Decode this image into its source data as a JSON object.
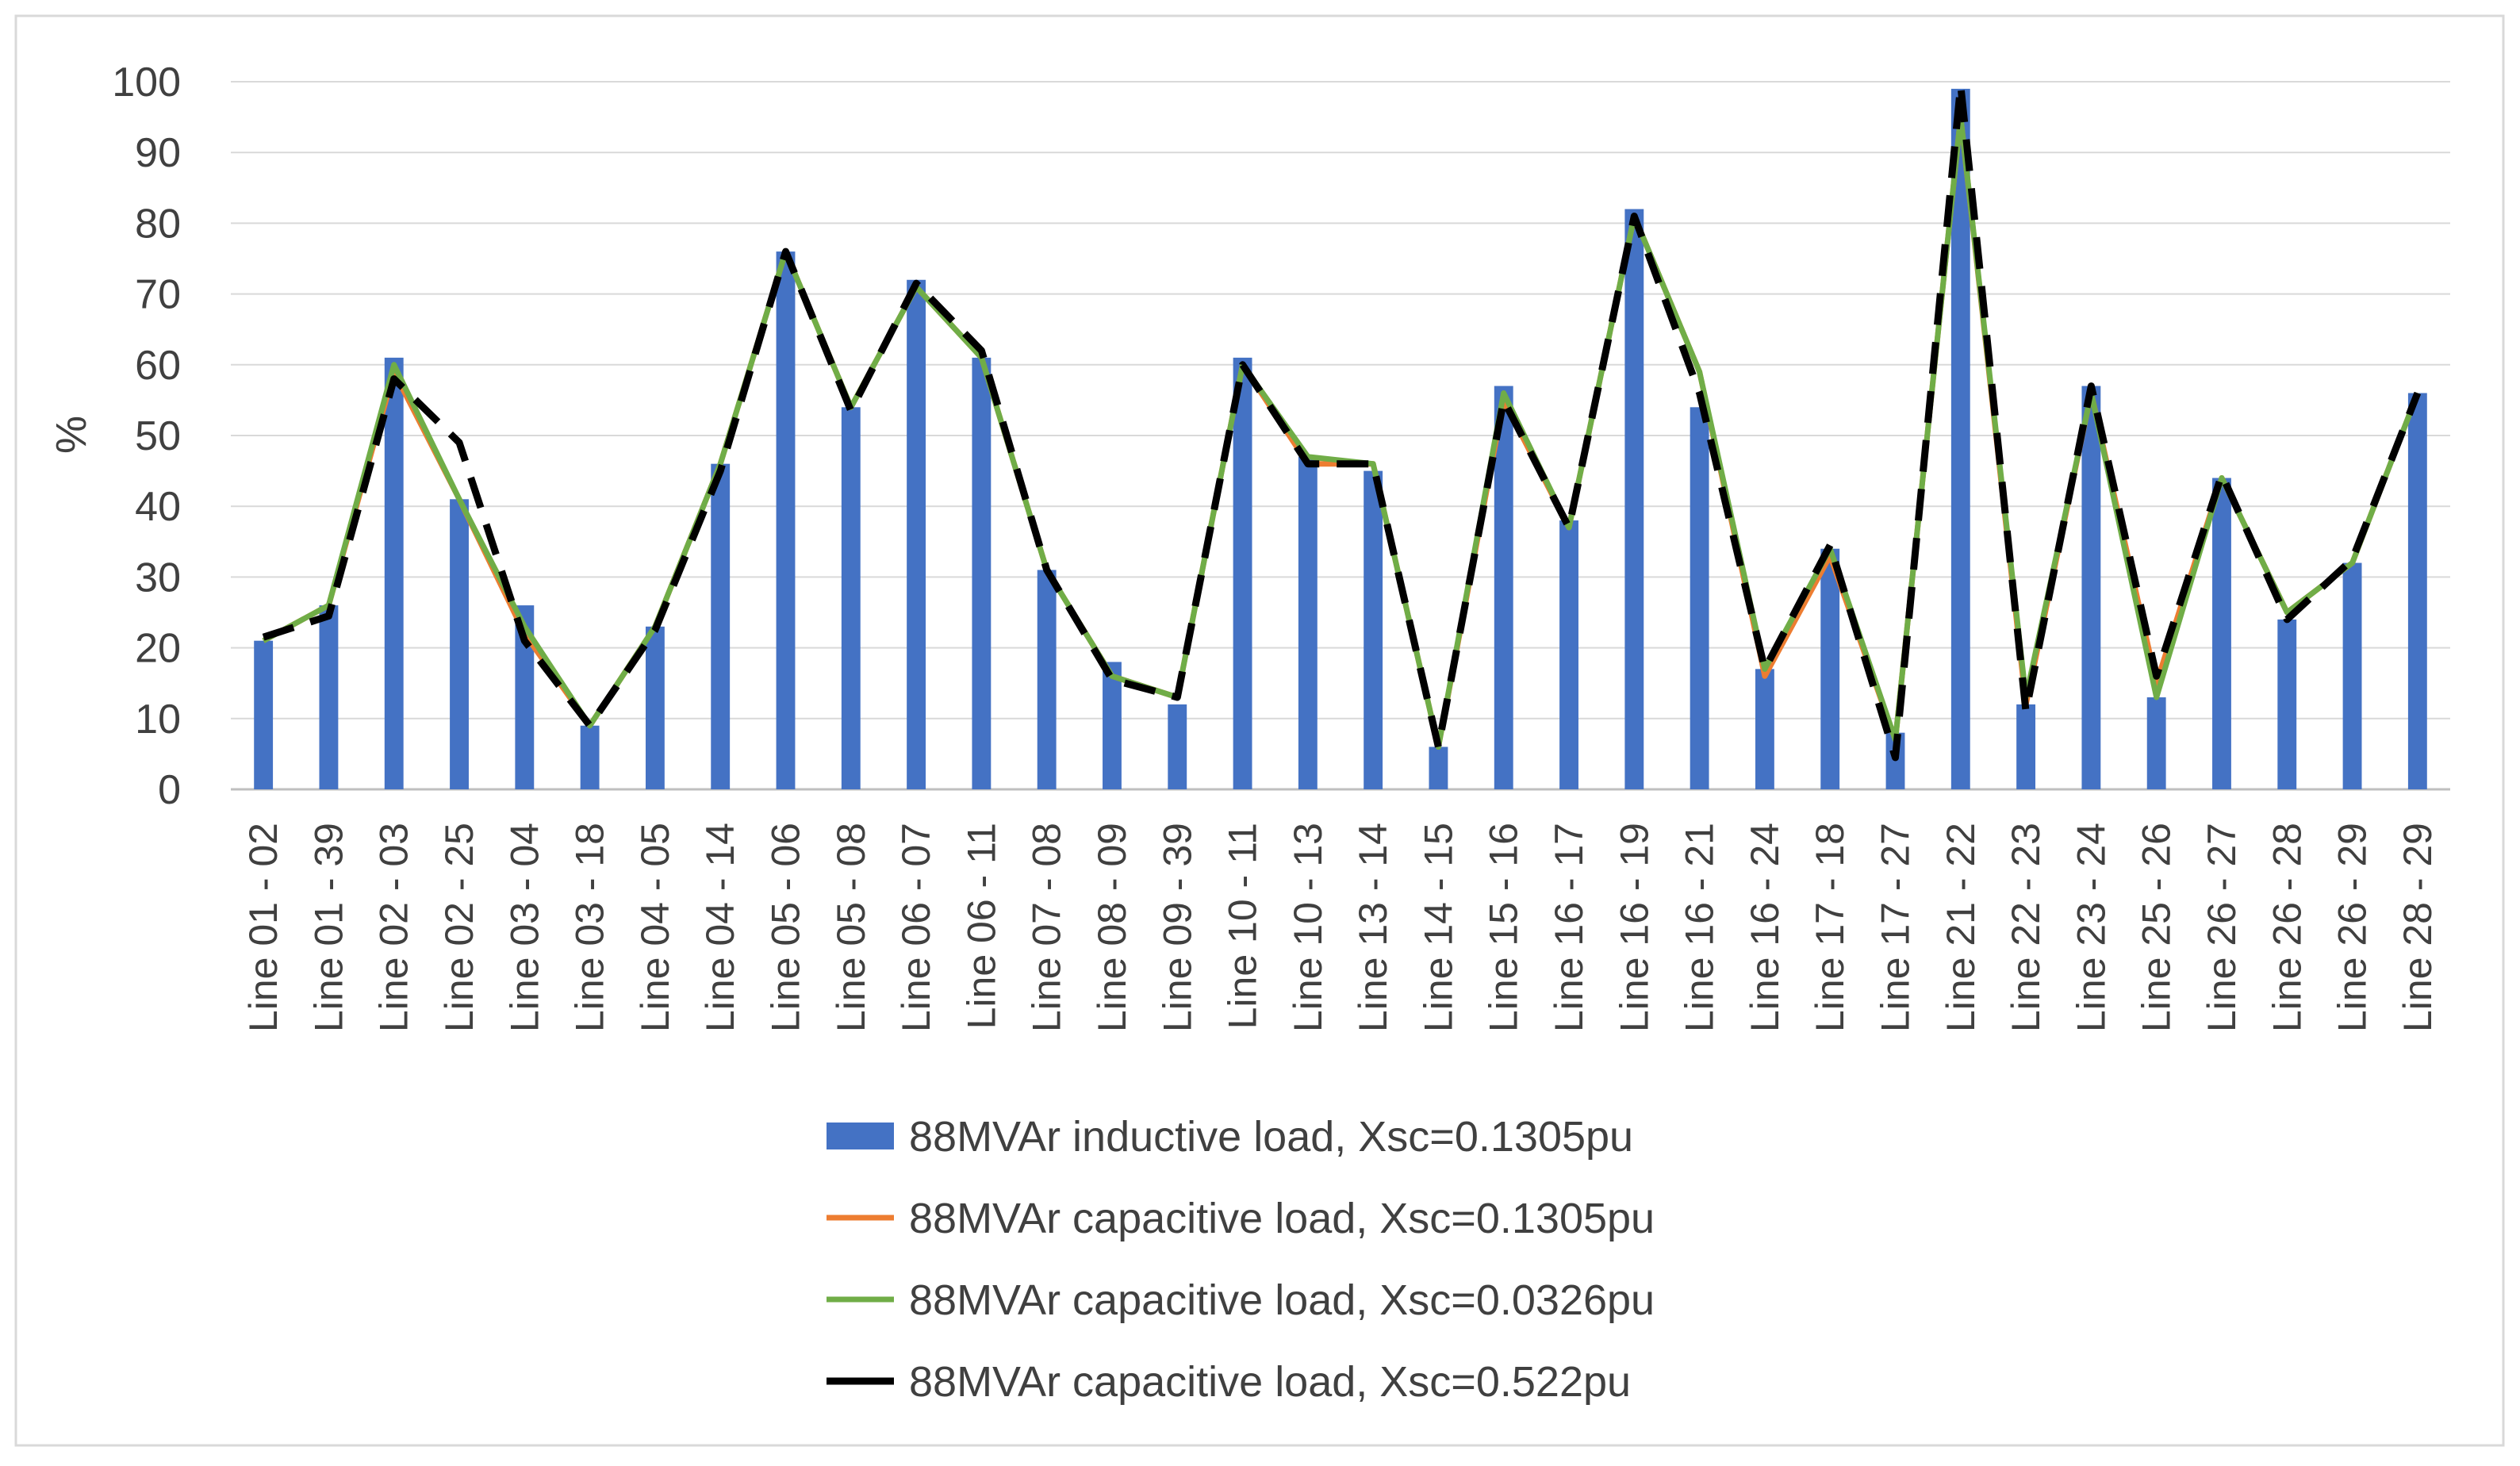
{
  "chart_data": {
    "type": "bar",
    "title": "",
    "xlabel": "",
    "ylabel": "%",
    "ylim": [
      0,
      100
    ],
    "yticks": [
      0,
      10,
      20,
      30,
      40,
      50,
      60,
      70,
      80,
      90,
      100
    ],
    "grid": true,
    "legend_position": "bottom",
    "categories": [
      "Line 01 - 02",
      "Line 01 - 39",
      "Line 02 - 03",
      "Line 02 - 25",
      "Line 03 - 04",
      "Line 03 - 18",
      "Line 04 - 05",
      "Line 04 - 14",
      "Line 05 - 06",
      "Line 05 - 08",
      "Line 06 - 07",
      "Line 06 - 11",
      "Line 07 - 08",
      "Line 08 - 09",
      "Line 09 - 39",
      "Line 10 - 11",
      "Line 10 - 13",
      "Line 13 - 14",
      "Line 14 - 15",
      "Line 15 - 16",
      "Line 16 - 17",
      "Line 16 - 19",
      "Line 16 - 21",
      "Line 16 - 24",
      "Line 17 - 18",
      "Line 17 - 27",
      "Line 21 - 22",
      "Line 22 - 23",
      "Line 23 - 24",
      "Line 25 - 26",
      "Line 26 - 27",
      "Line 26 - 28",
      "Line 26 - 29",
      "Line 28 - 29"
    ],
    "series": [
      {
        "name": "88MVAr inductive load, Xsc=0.1305pu",
        "kind": "bar",
        "color": "#4472C4",
        "values": [
          21,
          26,
          61,
          41,
          26,
          9,
          23,
          46,
          76,
          54,
          72,
          61,
          31,
          18,
          12,
          61,
          47,
          45,
          6,
          57,
          38,
          82,
          54,
          17,
          34,
          8,
          99,
          12,
          57,
          13,
          44,
          24,
          32,
          56
        ]
      },
      {
        "name": "88MVAr capacitive load, Xsc=0.1305pu",
        "kind": "line",
        "color": "#ED7D31",
        "dash": "solid",
        "values": [
          21,
          26,
          59,
          41,
          22,
          9,
          23,
          46,
          76,
          54,
          71,
          61,
          31,
          16,
          13,
          60,
          46,
          46,
          6,
          55,
          37,
          81,
          59,
          16,
          33,
          7,
          95,
          12,
          56,
          15,
          44,
          25,
          32,
          56
        ]
      },
      {
        "name": "88MVAr capacitive load, Xsc=0.0326pu",
        "kind": "line",
        "color": "#70AD47",
        "dash": "solid",
        "values": [
          21,
          26,
          60,
          41,
          23,
          9,
          23,
          46,
          76,
          54,
          71,
          61,
          31,
          16,
          13,
          60,
          47,
          46,
          6,
          56,
          37,
          81,
          59,
          17,
          34,
          7,
          95,
          13,
          56,
          13,
          44,
          25,
          32,
          56
        ]
      },
      {
        "name": "88MVAr capacitive load, Xsc=0.522pu",
        "kind": "line",
        "color": "#000000",
        "dash": "dashed",
        "values": [
          21.5,
          24.5,
          58,
          49,
          21,
          9,
          22.5,
          45,
          76,
          53.5,
          71.5,
          62,
          31,
          15.5,
          13,
          60,
          46,
          46,
          6,
          55,
          37,
          81,
          56,
          17,
          34.5,
          4.5,
          99.5,
          11,
          57,
          16,
          44.5,
          24,
          32.5,
          56
        ]
      }
    ]
  }
}
